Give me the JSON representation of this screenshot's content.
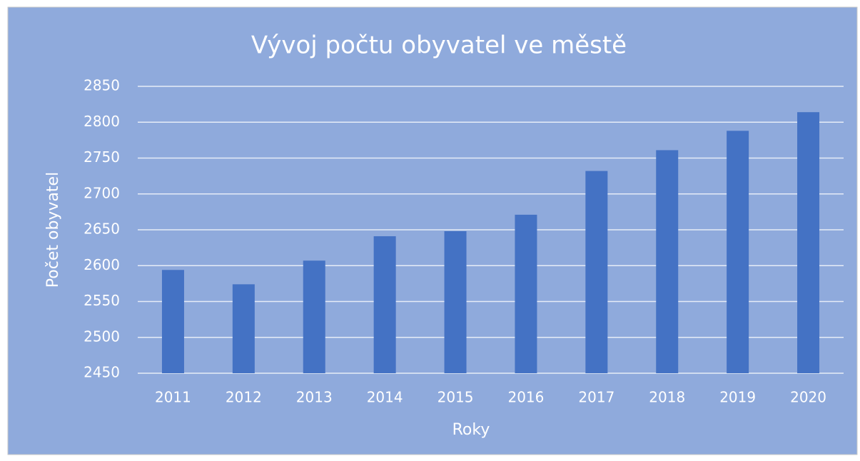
{
  "chart_data": {
    "type": "bar",
    "title": "Vývoj počtu obyvatel ve městě",
    "x_label": "Roky",
    "y_label": "Počet obyvatel",
    "categories": [
      "2011",
      "2012",
      "2013",
      "2014",
      "2015",
      "2016",
      "2017",
      "2018",
      "2019",
      "2020"
    ],
    "values": [
      2594,
      2574,
      2607,
      2641,
      2648,
      2671,
      2732,
      2761,
      2788,
      2814
    ],
    "color": "#4472c4",
    "ylim": [
      2450,
      2850
    ],
    "yticks": [
      2450,
      2500,
      2550,
      2600,
      2650,
      2700,
      2750,
      2800,
      2850
    ],
    "grid": true
  }
}
